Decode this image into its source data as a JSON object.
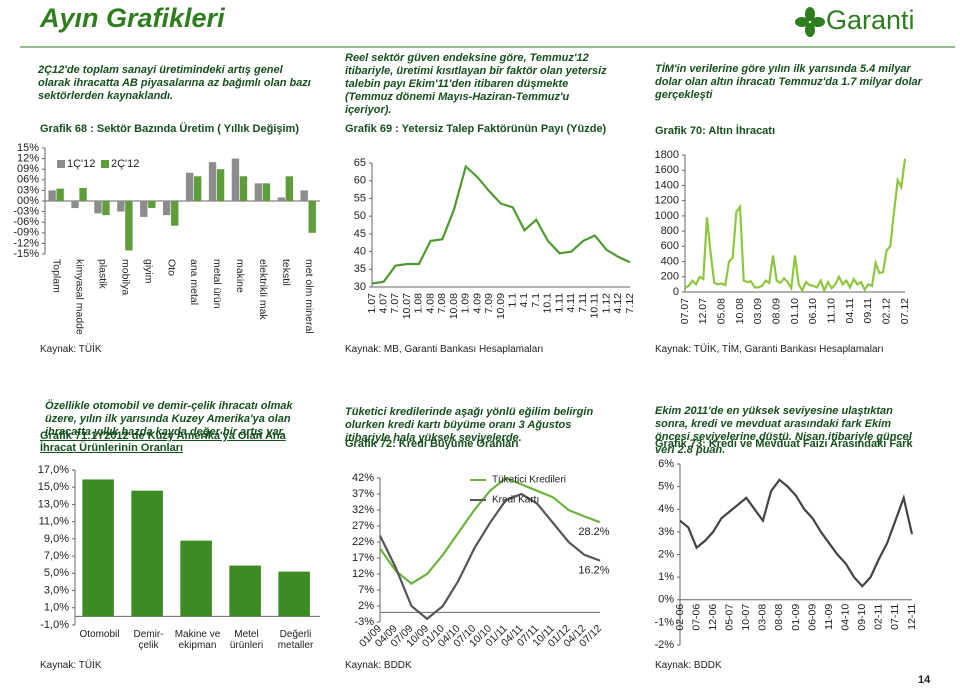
{
  "header": {
    "title": "Ayın Grafikleri",
    "logo": "Garanti"
  },
  "panels": [
    {
      "text": "2Ç12'de toplam sanayi üretimindeki artış genel olarak ihracatta AB piyasalarına az bağımlı olan bazı sektörlerden kaynaklandı.",
      "source": "Kaynak: TÜİK"
    },
    {
      "text": "Reel sektör güven endeksine göre, Temmuz'12 itibariyle, üretimi kısıtlayan bir faktör olan yetersiz talebin payı Ekim'11'den itibaren düşmekte (Temmuz dönemi Mayıs-Haziran-Temmuz'u içeriyor).",
      "source": "Kaynak: MB, Garanti Bankası Hesaplamaları"
    },
    {
      "text": "TİM'in verilerine göre yılın ilk yarısında 5.4 milyar dolar olan altın ihracatı Temmuz'da 1.7 milyar dolar gerçekleşti",
      "source": "Kaynak: TÜİK, TİM, Garanti Bankası Hesaplamaları"
    },
    {
      "text": "Özellikle otomobil ve demir-çelik ihracatı olmak üzere, yılın ilk yarısında Kuzey Amerika'ya olan ihracatta yıllık bazda kayda değer bir artış var.",
      "source": "Kaynak: TÜİK"
    },
    {
      "text": "Tüketici kredilerinde aşağı yönlü eğilim belirgin olurken kredi kartı büyüme oranı 3 Ağustos itibariyle hala yüksek seviyelerde.",
      "source": "Kaynak: BDDK"
    },
    {
      "text": "Ekim 2011'de en yüksek seviyesine ulaştıktan sonra, kredi ve mevduat arasındaki fark Ekim öncesi seviyelerine düştü. Nisan itibariyle güncel veri 2.8 puan.",
      "source": "Kaynak: BDDK"
    }
  ],
  "chart_data": [
    {
      "type": "bar",
      "title": "Grafik 68 : Sektör Bazında Üretim ( Yıllık Değişim)",
      "categories": [
        "Toplam",
        "kimyasal madde",
        "plastik",
        "mobilya",
        "giyim",
        "Oto",
        "ana metal",
        "metal ürün",
        "makine",
        "elektrikli mak",
        "tekstil",
        "met olm mineral"
      ],
      "series": [
        {
          "name": "1Ç'12",
          "color": "#8c8c8c",
          "values": [
            3,
            -2,
            -3.5,
            -3,
            -4.5,
            -4,
            8,
            11,
            12,
            5,
            1,
            3
          ]
        },
        {
          "name": "2Ç'12",
          "color": "#5e9e3a",
          "values": [
            3.5,
            3.7,
            -4,
            -14,
            -2,
            -7,
            7,
            9,
            7,
            5,
            7,
            -9
          ]
        }
      ],
      "ylim": [
        -15,
        15
      ],
      "yticks": [
        {
          "value": 15,
          "label": "15%"
        },
        {
          "value": 12,
          "label": "12%"
        },
        {
          "value": 9,
          "label": "09%"
        },
        {
          "value": 6,
          "label": "06%"
        },
        {
          "value": 3,
          "label": "03%"
        },
        {
          "value": 0,
          "label": "00%"
        },
        {
          "value": -3,
          "label": "-03%"
        },
        {
          "value": -6,
          "label": "-06%"
        },
        {
          "value": -9,
          "label": "-09%"
        },
        {
          "value": -12,
          "label": "-12%"
        },
        {
          "value": -15,
          "label": "-15%"
        }
      ],
      "grid": false,
      "legend": "upper left"
    },
    {
      "type": "line",
      "title": "Grafik 69 : Yetersiz Talep Faktörünün Payı (Yüzde)",
      "categories": [
        "1.07",
        "4.07",
        "7.07",
        "10.07",
        "1.08",
        "4.08",
        "7.08",
        "10.08",
        "1.09",
        "4.09",
        "7.09",
        "10.09",
        "1.1",
        "4.1",
        "7.1",
        "10.1",
        "1.11",
        "4.11",
        "7.11",
        "10.11",
        "1.12",
        "4.12",
        "7.12"
      ],
      "values": [
        31,
        31.5,
        36,
        36.5,
        36.5,
        43,
        43.5,
        52,
        64,
        61,
        57,
        53.5,
        52.5,
        46,
        49,
        43,
        39.5,
        40,
        43,
        44.5,
        40.5,
        38.5,
        37
      ],
      "color": "#4f9a2f",
      "ylim": [
        30,
        65
      ],
      "yticks": [
        30,
        35,
        40,
        45,
        50,
        55,
        60,
        65
      ],
      "grid": false
    },
    {
      "type": "line",
      "title": "Grafik 70: Altın İhracatı",
      "categories": [
        "07.07",
        null,
        null,
        null,
        null,
        "12.07",
        null,
        null,
        null,
        null,
        "05.08",
        null,
        null,
        null,
        null,
        "10.08",
        null,
        null,
        null,
        null,
        "03.09",
        null,
        null,
        null,
        null,
        "08.09",
        null,
        null,
        null,
        null,
        "01.10",
        null,
        null,
        null,
        null,
        "06.10",
        null,
        null,
        null,
        null,
        "11.10",
        null,
        null,
        null,
        null,
        "04.11",
        null,
        null,
        null,
        null,
        "09.11",
        null,
        null,
        null,
        null,
        "02.12",
        null,
        null,
        null,
        null,
        "07.12"
      ],
      "values": [
        50,
        80,
        150,
        100,
        200,
        170,
        980,
        500,
        120,
        100,
        110,
        90,
        400,
        450,
        1050,
        1120,
        150,
        130,
        140,
        60,
        60,
        80,
        150,
        120,
        480,
        150,
        120,
        180,
        130,
        50,
        480,
        100,
        20,
        130,
        90,
        80,
        60,
        150,
        20,
        130,
        50,
        100,
        200,
        100,
        150,
        60,
        170,
        100,
        130,
        30,
        100,
        80,
        380,
        250,
        260,
        550,
        600,
        1050,
        1470,
        1380,
        1750
      ],
      "color": "#8dc63f",
      "ylim": [
        0,
        1800
      ],
      "yticks": [
        0,
        200,
        400,
        600,
        800,
        1000,
        1200,
        1400,
        1600,
        1800
      ],
      "grid": false
    },
    {
      "type": "bar",
      "title": "Grafik 71:1Y2012 de Kuzy Amerika'ya Olan Ana İhracat Ürünlerinin Oranları",
      "categories": [
        "Otomobil",
        "Demir-çelik",
        "Makine ve ekipman",
        "Metel ürünleri",
        "Değerli metaller"
      ],
      "values": [
        15.9,
        14.6,
        8.8,
        5.9,
        5.2
      ],
      "color": "#3c8c23",
      "ylim": [
        -1,
        17
      ],
      "yticks": [
        {
          "value": 17,
          "label": "17,0%"
        },
        {
          "value": 15,
          "label": "15,0%"
        },
        {
          "value": 13,
          "label": "13,0%"
        },
        {
          "value": 11,
          "label": "11,0%"
        },
        {
          "value": 9,
          "label": "9,0%"
        },
        {
          "value": 7,
          "label": "7,0%"
        },
        {
          "value": 5,
          "label": "5,0%"
        },
        {
          "value": 3,
          "label": "3,0%"
        },
        {
          "value": 1,
          "label": "1,0%"
        },
        {
          "value": -1,
          "label": "-1,0%"
        }
      ],
      "grid": false
    },
    {
      "type": "line",
      "title": "Grafik 72: Kredi Büyüme Oranları",
      "categories": [
        "01/09",
        "04/09",
        "07/09",
        "10/09",
        "01/10",
        "04/10",
        "07/10",
        "10/10",
        "01/11",
        "04/11",
        "07/11",
        "10/11",
        "01/12",
        "04/12",
        "07/12"
      ],
      "series": [
        {
          "name": "Tüketici Kredileri",
          "color": "#6cb33f",
          "values": [
            20,
            13,
            9,
            12,
            18,
            25,
            32,
            38,
            42,
            40,
            38,
            36,
            32,
            30,
            28.2
          ],
          "value_labels": [
            null,
            null,
            null,
            null,
            null,
            null,
            null,
            null,
            null,
            null,
            null,
            null,
            null,
            null,
            "28.2%"
          ]
        },
        {
          "name": "Kredi Kartı",
          "color": "#555555",
          "values": [
            24,
            14,
            2,
            -2,
            2,
            10,
            20,
            28,
            35,
            37,
            34,
            28,
            22,
            18,
            16.2
          ],
          "value_labels": [
            null,
            null,
            null,
            null,
            null,
            null,
            null,
            null,
            null,
            null,
            null,
            null,
            null,
            null,
            "16.2%"
          ]
        }
      ],
      "ylim": [
        -3,
        42
      ],
      "yticks": [
        {
          "value": -3,
          "label": "-3%"
        },
        {
          "value": 2,
          "label": "2%"
        },
        {
          "value": 7,
          "label": "7%"
        },
        {
          "value": 12,
          "label": "12%"
        },
        {
          "value": 17,
          "label": "17%"
        },
        {
          "value": 22,
          "label": "22%"
        },
        {
          "value": 27,
          "label": "27%"
        },
        {
          "value": 32,
          "label": "32%"
        },
        {
          "value": 37,
          "label": "37%"
        },
        {
          "value": 42,
          "label": "42%"
        }
      ],
      "grid": false,
      "legend": "upper right"
    },
    {
      "type": "line",
      "title": "Grafik 73: Kredi ve Mevduat Faizi Arasındaki Fark",
      "categories": [
        "02-06",
        null,
        "07-06",
        null,
        "12-06",
        null,
        "05-07",
        null,
        "10-07",
        null,
        "03-08",
        null,
        "08-08",
        null,
        "01-09",
        null,
        "06-09",
        null,
        "11-09",
        null,
        "04-10",
        null,
        "09-10",
        null,
        "02-11",
        null,
        "07-11",
        null,
        "12-11"
      ],
      "values": [
        3.5,
        3.2,
        2.3,
        2.6,
        3.0,
        3.6,
        3.9,
        4.2,
        4.5,
        4.0,
        3.5,
        4.8,
        5.3,
        5.0,
        4.6,
        4.0,
        3.6,
        3.0,
        2.5,
        2.0,
        1.6,
        1.0,
        0.6,
        1.0,
        1.8,
        2.5,
        3.5,
        4.5,
        2.9
      ],
      "color": "#444444",
      "ylim": [
        -2,
        6
      ],
      "yticks": [
        {
          "value": -2,
          "label": "-2%"
        },
        {
          "value": -1,
          "label": "-1%"
        },
        {
          "value": 0,
          "label": "0%"
        },
        {
          "value": 1,
          "label": "1%"
        },
        {
          "value": 2,
          "label": "2%"
        },
        {
          "value": 3,
          "label": "3%"
        },
        {
          "value": 4,
          "label": "4%"
        },
        {
          "value": 5,
          "label": "5%"
        },
        {
          "value": 6,
          "label": "6%"
        }
      ],
      "grid": false
    }
  ],
  "page_number": "14"
}
